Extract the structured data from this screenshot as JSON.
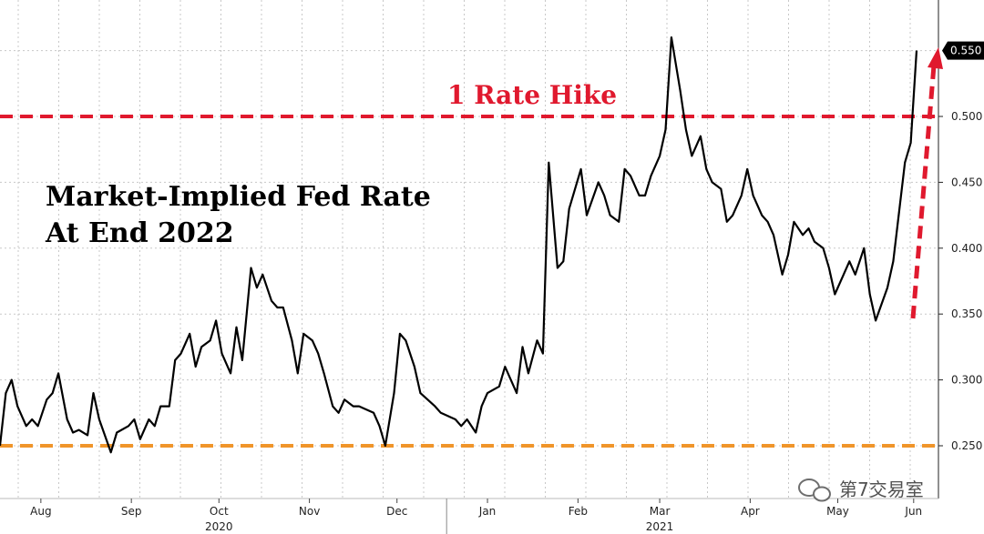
{
  "chart_data": {
    "type": "line",
    "title_lines": [
      "Market-Implied Fed Rate",
      "At End 2022"
    ],
    "ylim": [
      0.22,
      0.58
    ],
    "y_ticks": [
      "0.250",
      "0.300",
      "0.350",
      "0.400",
      "0.450",
      "0.500"
    ],
    "y_tick_values": [
      0.25,
      0.3,
      0.35,
      0.4,
      0.45,
      0.5
    ],
    "x_labels": [
      "Aug",
      "Sep",
      "Oct",
      "Nov",
      "Dec",
      "Jan",
      "Feb",
      "Mar",
      "Apr",
      "May",
      "Jun"
    ],
    "x_label_dates": [
      "2020-08-15",
      "2020-09-15",
      "2020-10-15",
      "2020-11-15",
      "2020-12-15",
      "2021-01-15",
      "2021-02-15",
      "2021-03-15",
      "2021-04-15",
      "2021-05-15",
      "2021-06-10"
    ],
    "year_labels": [
      {
        "label": "2020",
        "date": "2020-10-15"
      },
      {
        "label": "2021",
        "date": "2021-03-15"
      }
    ],
    "last_value_label": "0.550",
    "last_value": 0.55,
    "reference_lines": [
      {
        "label": "1 Rate Hike",
        "value": 0.5,
        "color": "#e0192e"
      },
      {
        "label": "",
        "value": 0.25,
        "color": "#f0952a"
      }
    ],
    "grid": true,
    "series": [
      {
        "color": "#000000",
        "x": [
          "2020-08-01",
          "2020-08-03",
          "2020-08-05",
          "2020-08-07",
          "2020-08-10",
          "2020-08-12",
          "2020-08-14",
          "2020-08-17",
          "2020-08-19",
          "2020-08-21",
          "2020-08-24",
          "2020-08-26",
          "2020-08-28",
          "2020-08-31",
          "2020-09-02",
          "2020-09-04",
          "2020-09-08",
          "2020-09-10",
          "2020-09-14",
          "2020-09-16",
          "2020-09-18",
          "2020-09-21",
          "2020-09-23",
          "2020-09-25",
          "2020-09-28",
          "2020-09-30",
          "2020-10-02",
          "2020-10-05",
          "2020-10-07",
          "2020-10-09",
          "2020-10-12",
          "2020-10-14",
          "2020-10-16",
          "2020-10-19",
          "2020-10-21",
          "2020-10-23",
          "2020-10-26",
          "2020-10-28",
          "2020-10-30",
          "2020-11-02",
          "2020-11-04",
          "2020-11-06",
          "2020-11-09",
          "2020-11-11",
          "2020-11-13",
          "2020-11-16",
          "2020-11-18",
          "2020-11-20",
          "2020-11-23",
          "2020-11-25",
          "2020-11-27",
          "2020-11-30",
          "2020-12-02",
          "2020-12-04",
          "2020-12-07",
          "2020-12-09",
          "2020-12-11",
          "2020-12-14",
          "2020-12-16",
          "2020-12-18",
          "2020-12-21",
          "2020-12-23",
          "2020-12-28",
          "2020-12-30",
          "2021-01-04",
          "2021-01-06",
          "2021-01-08",
          "2021-01-11",
          "2021-01-13",
          "2021-01-15",
          "2021-01-19",
          "2021-01-21",
          "2021-01-25",
          "2021-01-27",
          "2021-01-29",
          "2021-02-01",
          "2021-02-03",
          "2021-02-05",
          "2021-02-08",
          "2021-02-10",
          "2021-02-12",
          "2021-02-16",
          "2021-02-18",
          "2021-02-22",
          "2021-02-24",
          "2021-02-26",
          "2021-03-01",
          "2021-03-03",
          "2021-03-05",
          "2021-03-08",
          "2021-03-10",
          "2021-03-12",
          "2021-03-15",
          "2021-03-17",
          "2021-03-19",
          "2021-03-22",
          "2021-03-24",
          "2021-03-26",
          "2021-03-29",
          "2021-03-31",
          "2021-04-02",
          "2021-04-05",
          "2021-04-07",
          "2021-04-09",
          "2021-04-12",
          "2021-04-14",
          "2021-04-16",
          "2021-04-19",
          "2021-04-21",
          "2021-04-23",
          "2021-04-26",
          "2021-04-28",
          "2021-04-30",
          "2021-05-03",
          "2021-05-05",
          "2021-05-07",
          "2021-05-10",
          "2021-05-12",
          "2021-05-14",
          "2021-05-17",
          "2021-05-19",
          "2021-05-21",
          "2021-05-24",
          "2021-05-26",
          "2021-05-28",
          "2021-06-01",
          "2021-06-03",
          "2021-06-07",
          "2021-06-09",
          "2021-06-11"
        ],
        "y": [
          0.25,
          0.29,
          0.3,
          0.28,
          0.265,
          0.27,
          0.265,
          0.285,
          0.29,
          0.305,
          0.27,
          0.26,
          0.262,
          0.258,
          0.29,
          0.27,
          0.245,
          0.26,
          0.265,
          0.27,
          0.255,
          0.27,
          0.265,
          0.28,
          0.28,
          0.315,
          0.32,
          0.335,
          0.31,
          0.325,
          0.33,
          0.345,
          0.32,
          0.305,
          0.34,
          0.315,
          0.385,
          0.37,
          0.38,
          0.36,
          0.355,
          0.355,
          0.33,
          0.305,
          0.335,
          0.33,
          0.32,
          0.305,
          0.28,
          0.275,
          0.285,
          0.28,
          0.28,
          0.278,
          0.275,
          0.265,
          0.25,
          0.29,
          0.335,
          0.33,
          0.31,
          0.29,
          0.28,
          0.275,
          0.27,
          0.265,
          0.27,
          0.26,
          0.28,
          0.29,
          0.295,
          0.31,
          0.29,
          0.325,
          0.305,
          0.33,
          0.32,
          0.465,
          0.385,
          0.39,
          0.43,
          0.46,
          0.425,
          0.45,
          0.44,
          0.425,
          0.42,
          0.46,
          0.455,
          0.44,
          0.44,
          0.455,
          0.47,
          0.49,
          0.56,
          0.52,
          0.49,
          0.47,
          0.485,
          0.46,
          0.45,
          0.445,
          0.42,
          0.425,
          0.44,
          0.46,
          0.44,
          0.425,
          0.42,
          0.41,
          0.38,
          0.395,
          0.42,
          0.41,
          0.415,
          0.405,
          0.4,
          0.385,
          0.365,
          0.38,
          0.39,
          0.38,
          0.4,
          0.365,
          0.345,
          0.37,
          0.39,
          0.465,
          0.48,
          0.55
        ]
      }
    ]
  },
  "watermark": {
    "text": "第7交易室",
    "icon": "wechat-chat-bubbles-icon"
  }
}
